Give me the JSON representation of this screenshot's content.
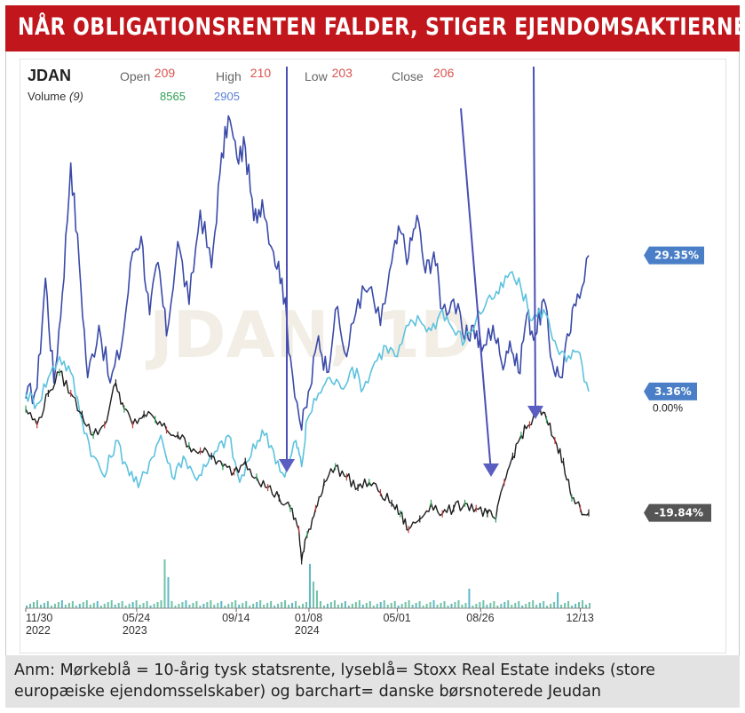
{
  "headline": "NÅR OBLIGATIONSRENTEN FALDER, STIGER EJENDOMSAKTIERNE",
  "note": "Anm: Mørkeblå = 10-årig tysk statsrente, lyseblå= Stoxx Real Estate indeks (store europæiske ejendomsselskaber) og barchart= danske børsnoterede Jeudan",
  "chart_data": {
    "type": "line",
    "ticker": "JDAN",
    "watermark": "JDAN, 1D",
    "ohlc": [
      {
        "label": "Open",
        "value": "209",
        "color": "#d9534f"
      },
      {
        "label": "High",
        "value": "210",
        "color": "#d9534f"
      },
      {
        "label": "Low",
        "value": "203",
        "color": "#d9534f"
      },
      {
        "label": "Close",
        "value": "206",
        "color": "#d9534f"
      }
    ],
    "volume": {
      "label": "Volume",
      "period": "(9)",
      "values": [
        {
          "value": "8565",
          "color": "#2e9e54"
        },
        {
          "value": "2905",
          "color": "#5b7fd6"
        }
      ]
    },
    "x_ticks": [
      {
        "label": "11/30",
        "year": "2022",
        "t": 0.0
      },
      {
        "label": "05/24",
        "year": "2023",
        "t": 0.197
      },
      {
        "label": "09/14",
        "year": "",
        "t": 0.374
      },
      {
        "label": "01/08",
        "year": "2024",
        "t": 0.503
      },
      {
        "label": "05/01",
        "year": "",
        "t": 0.66
      },
      {
        "label": "08/26",
        "year": "",
        "t": 0.808
      },
      {
        "label": "12/13",
        "year": "",
        "t": 0.985
      }
    ],
    "y_range": [
      -35,
      60
    ],
    "zero_label": "0.00%",
    "series": [
      {
        "key": "bund",
        "color": "#3a4aa8",
        "end_tag": "29.35%",
        "tag_color": "#4a7fc8",
        "points": [
          [
            0,
            2
          ],
          [
            0.02,
            4
          ],
          [
            0.035,
            25
          ],
          [
            0.05,
            5
          ],
          [
            0.065,
            22
          ],
          [
            0.08,
            47
          ],
          [
            0.095,
            28
          ],
          [
            0.11,
            6
          ],
          [
            0.13,
            16
          ],
          [
            0.15,
            5
          ],
          [
            0.17,
            12
          ],
          [
            0.19,
            30
          ],
          [
            0.205,
            33
          ],
          [
            0.22,
            18
          ],
          [
            0.235,
            28
          ],
          [
            0.25,
            14
          ],
          [
            0.27,
            32
          ],
          [
            0.29,
            20
          ],
          [
            0.31,
            38
          ],
          [
            0.33,
            27
          ],
          [
            0.345,
            45
          ],
          [
            0.36,
            56
          ],
          [
            0.375,
            48
          ],
          [
            0.39,
            50
          ],
          [
            0.405,
            36
          ],
          [
            0.42,
            40
          ],
          [
            0.44,
            30
          ],
          [
            0.455,
            25
          ],
          [
            0.47,
            10
          ],
          [
            0.49,
            -4
          ],
          [
            0.505,
            4
          ],
          [
            0.52,
            14
          ],
          [
            0.535,
            7
          ],
          [
            0.55,
            19
          ],
          [
            0.57,
            10
          ],
          [
            0.59,
            21
          ],
          [
            0.61,
            23
          ],
          [
            0.63,
            16
          ],
          [
            0.65,
            28
          ],
          [
            0.665,
            34
          ],
          [
            0.68,
            29
          ],
          [
            0.695,
            37
          ],
          [
            0.71,
            26
          ],
          [
            0.725,
            30
          ],
          [
            0.74,
            19
          ],
          [
            0.76,
            21
          ],
          [
            0.78,
            13
          ],
          [
            0.795,
            16
          ],
          [
            0.81,
            11
          ],
          [
            0.83,
            16
          ],
          [
            0.845,
            9
          ],
          [
            0.86,
            13
          ],
          [
            0.875,
            7
          ],
          [
            0.89,
            18
          ],
          [
            0.905,
            14
          ],
          [
            0.92,
            21
          ],
          [
            0.935,
            9
          ],
          [
            0.95,
            6
          ],
          [
            0.965,
            14
          ],
          [
            0.98,
            22
          ],
          [
            1.0,
            29.35
          ]
        ]
      },
      {
        "key": "stoxx",
        "color": "#5cc2de",
        "end_tag": "3.36%",
        "tag_color": "#4a7fc8",
        "points": [
          [
            0,
            3
          ],
          [
            0.02,
            1
          ],
          [
            0.04,
            6
          ],
          [
            0.06,
            10
          ],
          [
            0.08,
            7
          ],
          [
            0.1,
            -2
          ],
          [
            0.12,
            -9
          ],
          [
            0.14,
            -13
          ],
          [
            0.16,
            -6
          ],
          [
            0.18,
            -11
          ],
          [
            0.2,
            -15
          ],
          [
            0.22,
            -10
          ],
          [
            0.24,
            -5
          ],
          [
            0.26,
            -13
          ],
          [
            0.28,
            -9
          ],
          [
            0.3,
            -13
          ],
          [
            0.32,
            -11
          ],
          [
            0.34,
            -8
          ],
          [
            0.36,
            -5
          ],
          [
            0.38,
            -14
          ],
          [
            0.4,
            -9
          ],
          [
            0.42,
            -4
          ],
          [
            0.44,
            -8
          ],
          [
            0.46,
            -13
          ],
          [
            0.48,
            -6
          ],
          [
            0.49,
            -11
          ],
          [
            0.5,
            -2
          ],
          [
            0.52,
            3
          ],
          [
            0.54,
            6
          ],
          [
            0.56,
            4
          ],
          [
            0.58,
            8
          ],
          [
            0.6,
            4
          ],
          [
            0.62,
            9
          ],
          [
            0.64,
            12
          ],
          [
            0.66,
            10
          ],
          [
            0.68,
            16
          ],
          [
            0.7,
            17
          ],
          [
            0.72,
            15
          ],
          [
            0.74,
            19
          ],
          [
            0.76,
            15
          ],
          [
            0.78,
            13
          ],
          [
            0.8,
            17
          ],
          [
            0.82,
            21
          ],
          [
            0.84,
            22
          ],
          [
            0.86,
            26
          ],
          [
            0.88,
            23
          ],
          [
            0.9,
            17
          ],
          [
            0.92,
            19
          ],
          [
            0.94,
            13
          ],
          [
            0.96,
            9
          ],
          [
            0.98,
            11
          ],
          [
            1.0,
            3.36
          ]
        ]
      },
      {
        "key": "jeudan",
        "color": "#1e1e1e",
        "end_tag": "-19.84%",
        "tag_color": "#555555",
        "points": [
          [
            0,
            0
          ],
          [
            0.02,
            -3
          ],
          [
            0.04,
            3
          ],
          [
            0.06,
            7
          ],
          [
            0.08,
            3
          ],
          [
            0.1,
            -1
          ],
          [
            0.12,
            -5
          ],
          [
            0.14,
            -3
          ],
          [
            0.16,
            5
          ],
          [
            0.175,
            0
          ],
          [
            0.19,
            -3
          ],
          [
            0.21,
            -1
          ],
          [
            0.23,
            -2
          ],
          [
            0.25,
            -4
          ],
          [
            0.27,
            -5
          ],
          [
            0.29,
            -7
          ],
          [
            0.31,
            -8
          ],
          [
            0.33,
            -9
          ],
          [
            0.35,
            -11
          ],
          [
            0.37,
            -12
          ],
          [
            0.39,
            -10
          ],
          [
            0.41,
            -13
          ],
          [
            0.43,
            -15
          ],
          [
            0.45,
            -17
          ],
          [
            0.47,
            -19
          ],
          [
            0.485,
            -23
          ],
          [
            0.49,
            -29
          ],
          [
            0.5,
            -24
          ],
          [
            0.515,
            -19
          ],
          [
            0.53,
            -14
          ],
          [
            0.55,
            -11
          ],
          [
            0.57,
            -13
          ],
          [
            0.59,
            -15
          ],
          [
            0.61,
            -14
          ],
          [
            0.63,
            -16
          ],
          [
            0.65,
            -18
          ],
          [
            0.665,
            -20
          ],
          [
            0.68,
            -23
          ],
          [
            0.7,
            -21
          ],
          [
            0.72,
            -18
          ],
          [
            0.74,
            -20
          ],
          [
            0.76,
            -19
          ],
          [
            0.78,
            -18
          ],
          [
            0.8,
            -19
          ],
          [
            0.82,
            -20
          ],
          [
            0.835,
            -21
          ],
          [
            0.85,
            -14
          ],
          [
            0.865,
            -9
          ],
          [
            0.88,
            -5
          ],
          [
            0.895,
            -3
          ],
          [
            0.91,
            0
          ],
          [
            0.925,
            -2
          ],
          [
            0.94,
            -6
          ],
          [
            0.955,
            -10
          ],
          [
            0.97,
            -17
          ],
          [
            0.985,
            -19
          ],
          [
            1.0,
            -19.84
          ]
        ]
      }
    ]
  }
}
